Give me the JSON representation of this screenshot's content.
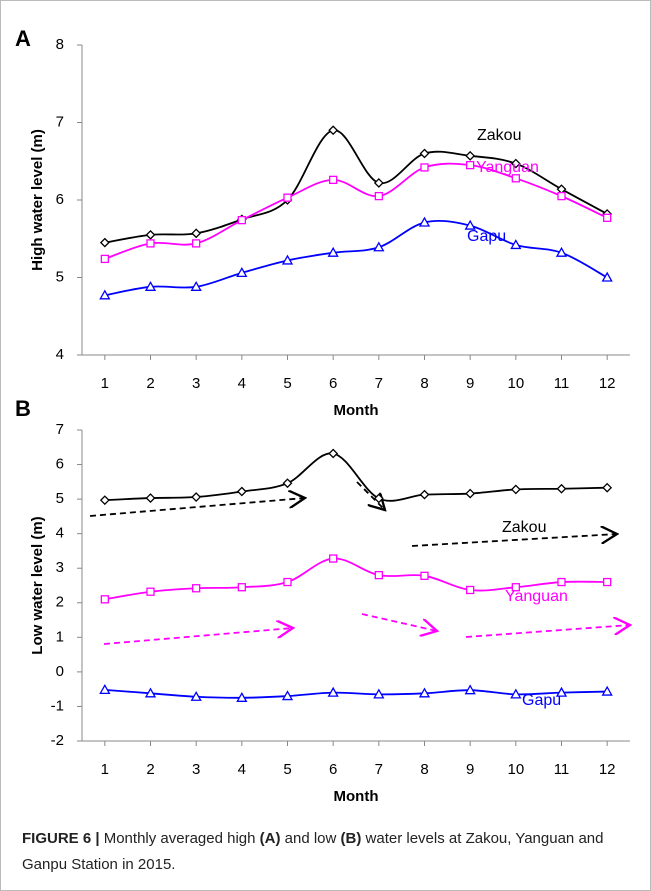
{
  "chart_data": [
    {
      "type": "line",
      "panel_label": "A",
      "x_label": "Month",
      "y_label": "High water level (m)",
      "categories": [
        1,
        2,
        3,
        4,
        5,
        6,
        7,
        8,
        9,
        10,
        11,
        12
      ],
      "ylim": [
        4,
        8
      ],
      "yticks": [
        4,
        5,
        6,
        7,
        8
      ],
      "series": [
        {
          "name": "Zakou",
          "color": "#000000",
          "marker": "diamond",
          "values": [
            5.45,
            5.55,
            5.57,
            5.75,
            6.0,
            6.9,
            6.22,
            6.6,
            6.57,
            6.47,
            6.14,
            5.82
          ]
        },
        {
          "name": "Yanguan",
          "color": "#ff00ff",
          "marker": "square",
          "values": [
            5.24,
            5.44,
            5.44,
            5.74,
            6.03,
            6.26,
            6.05,
            6.42,
            6.45,
            6.28,
            6.05,
            5.77
          ]
        },
        {
          "name": "Gapu",
          "color": "#0000ff",
          "marker": "triangle",
          "values": [
            4.77,
            4.88,
            4.88,
            5.06,
            5.22,
            5.32,
            5.39,
            5.71,
            5.67,
            5.42,
            5.32,
            5.0
          ]
        }
      ]
    },
    {
      "type": "line",
      "panel_label": "B",
      "x_label": "Month",
      "y_label": "Low water level (m)",
      "categories": [
        1,
        2,
        3,
        4,
        5,
        6,
        7,
        8,
        9,
        10,
        11,
        12
      ],
      "ylim": [
        -2,
        7
      ],
      "yticks": [
        -2,
        -1,
        0,
        1,
        2,
        3,
        4,
        5,
        6,
        7
      ],
      "series": [
        {
          "name": "Zakou",
          "color": "#000000",
          "marker": "diamond",
          "values": [
            4.97,
            5.03,
            5.06,
            5.22,
            5.46,
            6.32,
            5.02,
            5.13,
            5.16,
            5.28,
            5.3,
            5.33
          ]
        },
        {
          "name": "Yanguan",
          "color": "#ff00ff",
          "marker": "square",
          "values": [
            2.1,
            2.32,
            2.42,
            2.45,
            2.6,
            3.28,
            2.8,
            2.78,
            2.37,
            2.45,
            2.6,
            2.6
          ]
        },
        {
          "name": "Gapu",
          "color": "#0000ff",
          "marker": "triangle",
          "values": [
            -0.52,
            -0.62,
            -0.72,
            -0.75,
            -0.7,
            -0.6,
            -0.65,
            -0.62,
            -0.53,
            -0.65,
            -0.6,
            -0.57
          ]
        }
      ]
    }
  ],
  "caption": {
    "label": "FIGURE 6 |",
    "parts": [
      "Monthly averaged high",
      "(A)",
      "and low",
      "(B)",
      "water levels at Zakou, Yanguan and Ganpu Station in 2015."
    ]
  }
}
